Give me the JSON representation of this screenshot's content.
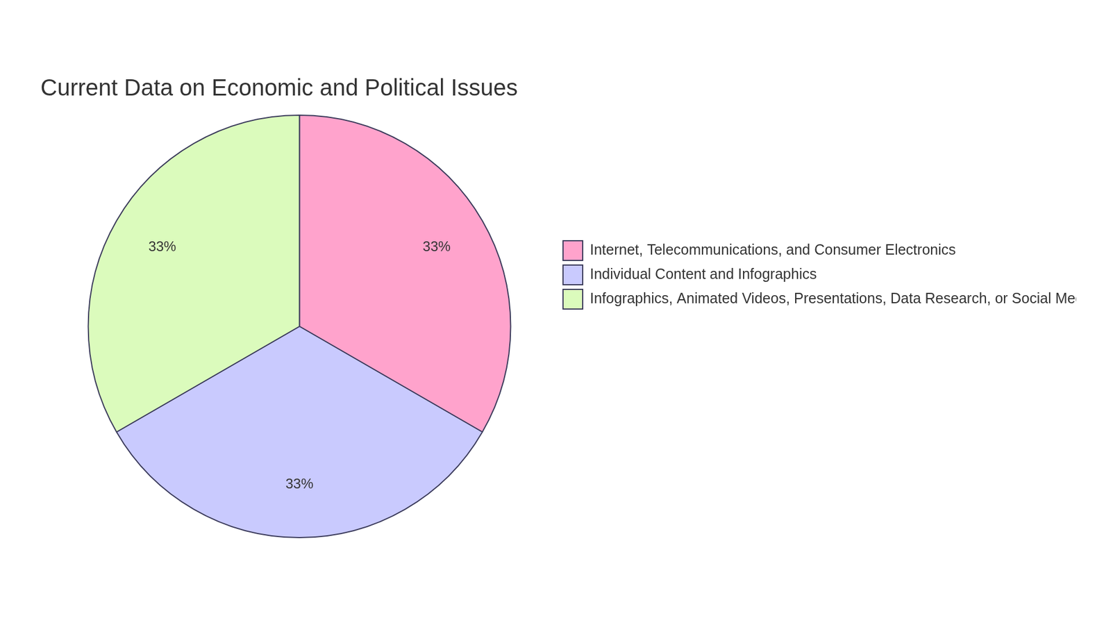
{
  "chart_data": {
    "type": "pie",
    "title": "Current Data on Economic and Political Issues",
    "categories": [
      "Internet, Telecommunications, and Consumer Electronics",
      "Individual Content and Infographics",
      "Infographics, Animated Videos, Presentations, Data Research, or Social Media Charts"
    ],
    "values": [
      33,
      33,
      33
    ],
    "value_labels": [
      "33%",
      "33%",
      "33%"
    ],
    "colors": [
      "#ffa3cc",
      "#c9cafe",
      "#dbfbbc"
    ],
    "data_labels": true,
    "legend": "right"
  }
}
